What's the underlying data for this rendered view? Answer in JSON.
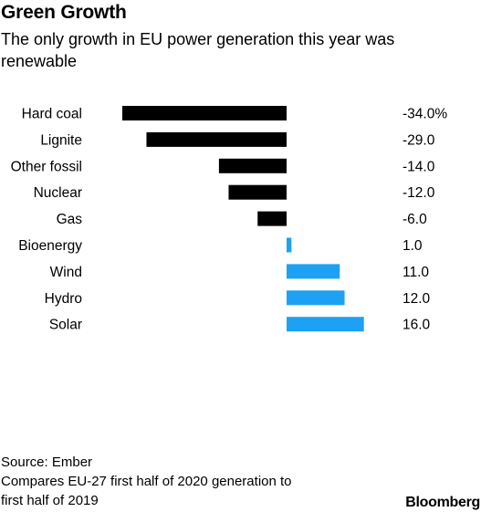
{
  "title": "Green Growth",
  "subtitle": "The only growth in EU power generation this year was renewable",
  "chart_data": {
    "type": "bar",
    "orientation": "horizontal",
    "categories": [
      "Hard coal",
      "Lignite",
      "Other fossil",
      "Nuclear",
      "Gas",
      "Bioenergy",
      "Wind",
      "Hydro",
      "Solar"
    ],
    "values": [
      -34.0,
      -29.0,
      -14.0,
      -12.0,
      -6.0,
      1.0,
      11.0,
      12.0,
      16.0
    ],
    "value_labels": [
      "-34.0%",
      "-29.0",
      "-14.0",
      "-12.0",
      "-6.0",
      "1.0",
      "11.0",
      "12.0",
      "16.0"
    ],
    "colors": {
      "negative": "#000000",
      "positive": "#1da1f2"
    }
  },
  "footer": {
    "source": "Source: Ember",
    "note_line1": "Compares EU-27 first half of 2020 generation to",
    "note_line2": "first half of 2019"
  },
  "brand": "Bloomberg"
}
